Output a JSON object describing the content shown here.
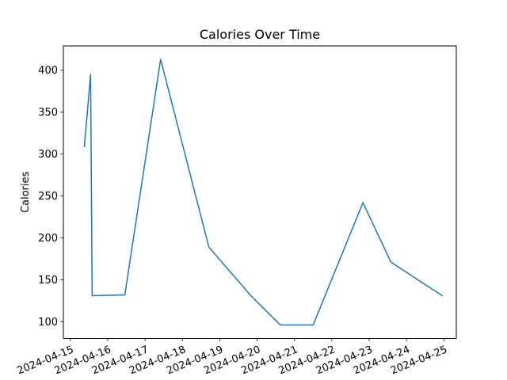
{
  "chart_data": {
    "type": "line",
    "title": "Calories Over Time",
    "xlabel": "",
    "ylabel": "Calories",
    "x_ticks": [
      "2024-04-15",
      "2024-04-16",
      "2024-04-17",
      "2024-04-18",
      "2024-04-19",
      "2024-04-20",
      "2024-04-21",
      "2024-04-22",
      "2024-04-23",
      "2024-04-24",
      "2024-04-25"
    ],
    "y_ticks": [
      100,
      150,
      200,
      250,
      300,
      350,
      400
    ],
    "xlim": [
      "2024-04-14 19:30",
      "2024-04-25 08:00"
    ],
    "ylim": [
      80,
      429
    ],
    "grid": false,
    "color": "#1f77b4",
    "series": [
      {
        "points": [
          {
            "x": "2024-04-15 09:00",
            "y": 309
          },
          {
            "x": "2024-04-15 13:00",
            "y": 395
          },
          {
            "x": "2024-04-15 14:00",
            "y": 131
          },
          {
            "x": "2024-04-16 11:00",
            "y": 132
          },
          {
            "x": "2024-04-17 10:00",
            "y": 413
          },
          {
            "x": "2024-04-18 17:00",
            "y": 189
          },
          {
            "x": "2024-04-19 20:00",
            "y": 131
          },
          {
            "x": "2024-04-20 15:00",
            "y": 96
          },
          {
            "x": "2024-04-21 12:00",
            "y": 96
          },
          {
            "x": "2024-04-22 20:00",
            "y": 242
          },
          {
            "x": "2024-04-23 14:00",
            "y": 171
          },
          {
            "x": "2024-04-24 23:00",
            "y": 131
          }
        ]
      }
    ]
  }
}
